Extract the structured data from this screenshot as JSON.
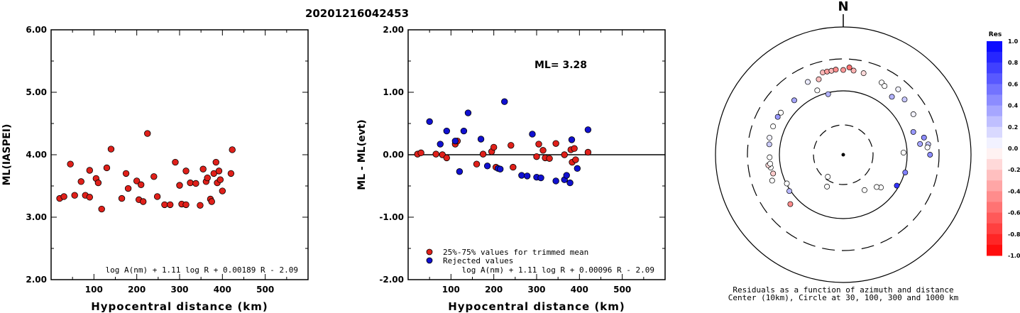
{
  "page_title": "20201216042453",
  "chart_data": [
    {
      "type": "scatter",
      "ylabel": "ML(IASPEI)",
      "xlabel": "Hypocentral distance (km)",
      "xlim": [
        0,
        600
      ],
      "ylim": [
        2.0,
        6.0
      ],
      "xticks": [
        "100",
        "200",
        "300",
        "400",
        "500"
      ],
      "yticks": [
        "2.00",
        "3.00",
        "4.00",
        "5.00",
        "6.00"
      ],
      "formula": "log A(nm) + 1.11 log R + 0.00189 R - 2.09",
      "point_color": "#e0201a",
      "points": [
        [
          20,
          3.3
        ],
        [
          30,
          3.33
        ],
        [
          45,
          3.85
        ],
        [
          55,
          3.35
        ],
        [
          70,
          3.57
        ],
        [
          80,
          3.35
        ],
        [
          90,
          3.32
        ],
        [
          90,
          3.75
        ],
        [
          105,
          3.62
        ],
        [
          110,
          3.55
        ],
        [
          118,
          3.13
        ],
        [
          130,
          3.79
        ],
        [
          140,
          4.09
        ],
        [
          165,
          3.3
        ],
        [
          175,
          3.7
        ],
        [
          180,
          3.46
        ],
        [
          200,
          3.58
        ],
        [
          205,
          3.28
        ],
        [
          210,
          3.52
        ],
        [
          215,
          3.25
        ],
        [
          225,
          4.34
        ],
        [
          240,
          3.65
        ],
        [
          248,
          3.33
        ],
        [
          265,
          3.2
        ],
        [
          278,
          3.2
        ],
        [
          290,
          3.88
        ],
        [
          300,
          3.51
        ],
        [
          305,
          3.21
        ],
        [
          315,
          3.74
        ],
        [
          315,
          3.2
        ],
        [
          325,
          3.55
        ],
        [
          338,
          3.54
        ],
        [
          348,
          3.19
        ],
        [
          355,
          3.77
        ],
        [
          362,
          3.57
        ],
        [
          365,
          3.63
        ],
        [
          372,
          3.29
        ],
        [
          375,
          3.25
        ],
        [
          380,
          3.7
        ],
        [
          385,
          3.88
        ],
        [
          388,
          3.55
        ],
        [
          392,
          3.74
        ],
        [
          395,
          3.6
        ],
        [
          400,
          3.42
        ],
        [
          420,
          3.7
        ],
        [
          423,
          4.08
        ]
      ]
    },
    {
      "type": "scatter",
      "ylabel": "ML - ML(evt)",
      "xlabel": "Hypocentral distance (km)",
      "xlim": [
        0,
        600
      ],
      "ylim": [
        -2.0,
        2.0
      ],
      "xticks": [
        "100",
        "200",
        "300",
        "400",
        "500"
      ],
      "yticks": [
        "-2.00",
        "-1.00",
        "0.00",
        "1.00",
        "2.00"
      ],
      "annotation": "ML= 3.28",
      "formula": "log A(nm) + 1.11 log R + 0.00096 R - 2.09",
      "legend": [
        {
          "label": "25%-75% values for trimmed mean",
          "color": "#e0201a"
        },
        {
          "label": "Rejected values",
          "color": "#1010d0"
        }
      ],
      "series": [
        {
          "name": "25%-75% values for trimmed mean",
          "color": "#e0201a",
          "points": [
            [
              22,
              0.01
            ],
            [
              30,
              0.03
            ],
            [
              65,
              0.01
            ],
            [
              80,
              0.0
            ],
            [
              90,
              -0.05
            ],
            [
              110,
              0.17
            ],
            [
              115,
              0.22
            ],
            [
              160,
              -0.15
            ],
            [
              175,
              0.01
            ],
            [
              195,
              0.05
            ],
            [
              200,
              0.12
            ],
            [
              205,
              -0.2
            ],
            [
              240,
              0.15
            ],
            [
              245,
              -0.2
            ],
            [
              300,
              -0.03
            ],
            [
              305,
              0.17
            ],
            [
              315,
              0.07
            ],
            [
              320,
              -0.05
            ],
            [
              330,
              -0.06
            ],
            [
              345,
              0.18
            ],
            [
              365,
              0.0
            ],
            [
              380,
              0.08
            ],
            [
              383,
              -0.12
            ],
            [
              388,
              0.1
            ],
            [
              391,
              -0.08
            ],
            [
              420,
              0.04
            ]
          ]
        },
        {
          "name": "Rejected values",
          "color": "#1010d0",
          "points": [
            [
              50,
              0.53
            ],
            [
              75,
              0.17
            ],
            [
              90,
              0.38
            ],
            [
              110,
              0.22
            ],
            [
              120,
              -0.27
            ],
            [
              130,
              0.38
            ],
            [
              140,
              0.67
            ],
            [
              170,
              0.25
            ],
            [
              185,
              -0.18
            ],
            [
              210,
              -0.22
            ],
            [
              215,
              -0.23
            ],
            [
              225,
              0.85
            ],
            [
              265,
              -0.33
            ],
            [
              278,
              -0.34
            ],
            [
              290,
              0.33
            ],
            [
              300,
              -0.36
            ],
            [
              310,
              -0.37
            ],
            [
              345,
              -0.42
            ],
            [
              365,
              -0.4
            ],
            [
              370,
              -0.33
            ],
            [
              378,
              -0.45
            ],
            [
              382,
              0.24
            ],
            [
              395,
              -0.22
            ],
            [
              420,
              0.4
            ]
          ]
        }
      ]
    },
    {
      "type": "scatter",
      "subtype": "polar-residuals",
      "north_label": "N",
      "caption_line1": "Residuals as a function of azimuth and distance",
      "caption_line2": "Center (10km), Circle at 30, 100, 300 and 1000 km",
      "colorbar": {
        "title": "Res",
        "ticks": [
          "1.0",
          "0.8",
          "0.6",
          "0.4",
          "0.2",
          "0.0",
          "-0.2",
          "-0.4",
          "-0.6",
          "-0.8",
          "-1.0"
        ],
        "min": -1.0,
        "max": 1.0
      },
      "points": [
        {
          "az": 334,
          "dist": 180,
          "res": 0.08
        },
        {
          "az": 342,
          "dist": 170,
          "res": -0.25
        },
        {
          "az": 346,
          "dist": 205,
          "res": -0.28
        },
        {
          "az": 349,
          "dist": 205,
          "res": -0.38
        },
        {
          "az": 352,
          "dist": 205,
          "res": -0.28
        },
        {
          "az": 355,
          "dist": 210,
          "res": -0.45
        },
        {
          "az": 0,
          "dist": 205,
          "res": -0.4
        },
        {
          "az": 4,
          "dist": 225,
          "res": -0.55
        },
        {
          "az": 7,
          "dist": 205,
          "res": -0.3
        },
        {
          "az": 14,
          "dist": 200,
          "res": -0.15
        },
        {
          "az": 28,
          "dist": 185,
          "res": 0.0
        },
        {
          "az": 31,
          "dist": 175,
          "res": 0.0
        },
        {
          "az": 40,
          "dist": 210,
          "res": 0.05
        },
        {
          "az": 40,
          "dist": 150,
          "res": 0.3
        },
        {
          "az": 48,
          "dist": 190,
          "res": 0.22
        },
        {
          "az": 60,
          "dist": 180,
          "res": 0.05
        },
        {
          "az": 72,
          "dist": 140,
          "res": 0.4
        },
        {
          "az": 78,
          "dist": 190,
          "res": 0.45
        },
        {
          "az": 82,
          "dist": 160,
          "res": 0.35
        },
        {
          "az": 83,
          "dist": 211,
          "res": 0.22
        },
        {
          "az": 85,
          "dist": 203,
          "res": 0.0
        },
        {
          "az": 88,
          "dist": 88,
          "res": 0.0
        },
        {
          "az": 90,
          "dist": 220,
          "res": 0.45
        },
        {
          "az": 106,
          "dist": 102,
          "res": 0.5
        },
        {
          "az": 120,
          "dist": 93,
          "res": 0.8
        },
        {
          "az": 131,
          "dist": 61,
          "res": 0.0
        },
        {
          "az": 134,
          "dist": 54,
          "res": 0.0
        },
        {
          "az": 149,
          "dist": 45,
          "res": 0.0
        },
        {
          "az": 207,
          "dist": 37,
          "res": 0.0
        },
        {
          "az": 215,
          "dist": 27,
          "res": 0.0
        },
        {
          "az": 227,
          "dist": 134,
          "res": -0.45
        },
        {
          "az": 243,
          "dist": 98,
          "res": 0.0
        },
        {
          "az": 236,
          "dist": 104,
          "res": 0.28
        },
        {
          "az": 250,
          "dist": 150,
          "res": 0.0
        },
        {
          "az": 255,
          "dist": 135,
          "res": -0.2
        },
        {
          "az": 260,
          "dist": 140,
          "res": 0.0
        },
        {
          "az": 262,
          "dist": 150,
          "res": -0.15
        },
        {
          "az": 263,
          "dist": 140,
          "res": 0.0
        },
        {
          "az": 268,
          "dist": 140,
          "res": 0.0
        },
        {
          "az": 278,
          "dist": 145,
          "res": 0.2
        },
        {
          "az": 283,
          "dist": 150,
          "res": 0.05
        },
        {
          "az": 292,
          "dist": 150,
          "res": 0.0
        },
        {
          "az": 300,
          "dist": 150,
          "res": 0.4
        },
        {
          "az": 304,
          "dist": 148,
          "res": 0.0
        },
        {
          "az": 318,
          "dist": 138,
          "res": 0.35
        },
        {
          "az": 338,
          "dist": 121,
          "res": 0.0
        },
        {
          "az": 346,
          "dist": 95,
          "res": 0.3
        }
      ]
    }
  ]
}
